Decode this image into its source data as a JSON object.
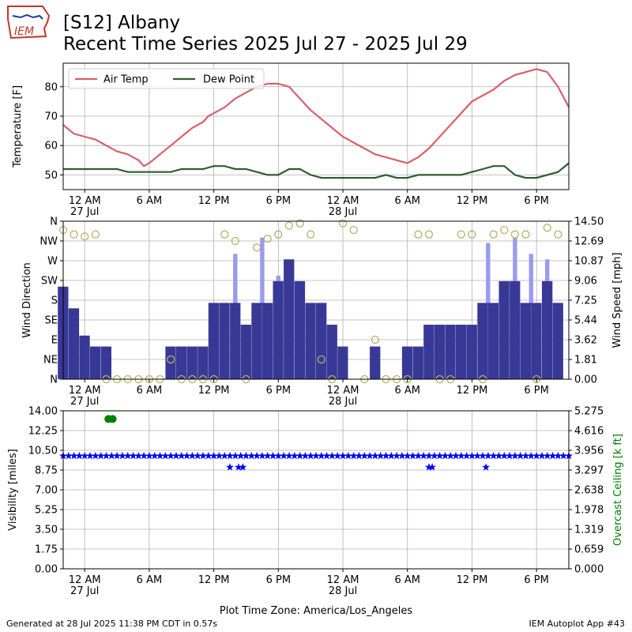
{
  "title_line1": "[S12] Albany",
  "title_line2": "Recent Time Series 2025 Jul 27 - 2025 Jul 29",
  "footer_left": "Generated at 28 Jul 2025 11:38 PM CDT in 0.57s",
  "footer_right": "IEM Autoplot App #43",
  "logo_text": "IEM",
  "x_axis_label": "Plot Time Zone: America/Los_Angeles",
  "time_ticks": [
    {
      "t": 0,
      "label": "12 AM",
      "sub": "27 Jul"
    },
    {
      "t": 6,
      "label": "6 AM",
      "sub": ""
    },
    {
      "t": 12,
      "label": "12 PM",
      "sub": ""
    },
    {
      "t": 18,
      "label": "6 PM",
      "sub": ""
    },
    {
      "t": 24,
      "label": "12 AM",
      "sub": "28 Jul"
    },
    {
      "t": 30,
      "label": "6 AM",
      "sub": ""
    },
    {
      "t": 36,
      "label": "12 PM",
      "sub": ""
    },
    {
      "t": 42,
      "label": "6 PM",
      "sub": ""
    }
  ],
  "colors": {
    "air_temp": "#d9606a",
    "dew_point": "#2e5e2e",
    "wind_speed": "#383896",
    "wind_gust": "#9a9aee",
    "wind_dir": "#b2b46a",
    "visibility": "#0000ff",
    "ceiling": "#008000"
  },
  "chart_data": [
    {
      "type": "line",
      "ylabel": "Temperature [F]",
      "xlim": [
        -2,
        45
      ],
      "ylim": [
        45,
        88
      ],
      "yticks": [
        50,
        60,
        70,
        80
      ],
      "grid": true,
      "legend_position": "top-left",
      "x_unit": "hours since 27 Jul 12 AM (America/Los_Angeles)",
      "series": [
        {
          "name": "Air Temp",
          "x": [
            -2,
            -1,
            0,
            1,
            2,
            3,
            4,
            5,
            5.5,
            6,
            7,
            8,
            9,
            10,
            11,
            11.5,
            12,
            13,
            14,
            15,
            16,
            17,
            18,
            19,
            20,
            21,
            22,
            23,
            24,
            25,
            26,
            27,
            28,
            29,
            30,
            31,
            32,
            33,
            34,
            35,
            36,
            37,
            38,
            39,
            40,
            41,
            42,
            43,
            44,
            45
          ],
          "y": [
            67,
            64,
            63,
            62,
            60,
            58,
            57,
            55,
            53,
            54,
            57,
            60,
            63,
            66,
            68,
            70,
            71,
            73,
            76,
            78,
            80,
            81,
            81,
            80,
            76,
            72,
            69,
            66,
            63,
            61,
            59,
            57,
            56,
            55,
            54,
            56,
            59,
            63,
            67,
            71,
            75,
            77,
            79,
            82,
            84,
            85,
            86,
            85,
            80,
            73
          ]
        },
        {
          "name": "Dew Point",
          "x": [
            -2,
            0,
            1,
            2,
            3,
            4,
            5,
            6,
            7,
            8,
            9,
            10,
            11,
            12,
            13,
            14,
            15,
            16,
            17,
            18,
            19,
            20,
            21,
            22,
            23,
            24,
            25,
            26,
            27,
            28,
            29,
            30,
            31,
            32,
            33,
            34,
            35,
            36,
            37,
            38,
            39,
            40,
            41,
            42,
            43,
            44,
            45
          ],
          "y": [
            52,
            52,
            52,
            52,
            52,
            51,
            51,
            51,
            51,
            51,
            52,
            52,
            52,
            53,
            53,
            52,
            52,
            51,
            50,
            50,
            52,
            52,
            50,
            49,
            49,
            49,
            49,
            49,
            49,
            50,
            49,
            49,
            50,
            50,
            50,
            50,
            50,
            51,
            52,
            53,
            53,
            50,
            49,
            49,
            50,
            51,
            54
          ]
        }
      ]
    },
    {
      "type": "bar",
      "ylabel": "Wind Direction",
      "y2label": "Wind Speed [mph]",
      "xlim": [
        -2,
        45
      ],
      "ylim_direction_deg": [
        0,
        360
      ],
      "direction_ticks": [
        "N",
        "NE",
        "E",
        "SE",
        "S",
        "SW",
        "W",
        "NW",
        "N"
      ],
      "y2lim": [
        0,
        14.5
      ],
      "y2ticks": [
        "0.00",
        "1.81",
        "3.62",
        "5.44",
        "7.25",
        "9.06",
        "10.87",
        "12.69",
        "14.50"
      ],
      "grid": true,
      "speed_x": [
        -2,
        -1,
        0,
        1,
        2,
        3,
        4,
        5,
        6,
        7,
        8,
        9,
        10,
        11,
        12,
        13,
        14,
        15,
        16,
        17,
        18,
        19,
        20,
        21,
        22,
        23,
        24,
        25,
        26,
        27,
        28,
        29,
        30,
        31,
        32,
        33,
        34,
        35,
        36,
        37,
        38,
        39,
        40,
        41,
        42,
        43,
        44
      ],
      "speed_mph": [
        8.5,
        6.5,
        4,
        3,
        3,
        0,
        0,
        0,
        0,
        0,
        3,
        3,
        3,
        3,
        7,
        7,
        7,
        5,
        7,
        7,
        9,
        11,
        9,
        7,
        7,
        5,
        3,
        0,
        0,
        3,
        0,
        0,
        3,
        3,
        5,
        5,
        5,
        5,
        5,
        7,
        7,
        9,
        9,
        7,
        7,
        9,
        7
      ],
      "gust_x": [
        14,
        16.5,
        18,
        37.5,
        40,
        41.5,
        43
      ],
      "gust_mph": [
        11.5,
        13,
        9.5,
        12.5,
        13,
        11.5,
        11
      ],
      "direction_x": [
        -2,
        -1,
        0,
        1,
        2,
        3,
        4,
        5,
        6,
        7,
        8,
        9,
        10,
        11,
        12,
        13,
        14,
        15,
        16,
        17,
        18,
        19,
        20,
        21,
        22,
        23,
        24,
        25,
        26,
        27,
        28,
        29,
        30,
        31,
        32,
        33,
        34,
        35,
        36,
        37,
        38,
        39,
        40,
        41,
        42,
        43,
        44
      ],
      "direction_deg": [
        340,
        330,
        325,
        330,
        0,
        0,
        0,
        0,
        0,
        0,
        45,
        0,
        0,
        0,
        0,
        330,
        315,
        0,
        300,
        320,
        330,
        350,
        355,
        330,
        45,
        0,
        355,
        340,
        0,
        90,
        0,
        0,
        0,
        330,
        330,
        0,
        0,
        330,
        330,
        0,
        330,
        340,
        330,
        330,
        0,
        345,
        330
      ]
    },
    {
      "type": "scatter",
      "ylabel": "Visibility [miles]",
      "y2label": "Overcast Ceiling [k ft]",
      "xlim": [
        -2,
        45
      ],
      "ylim": [
        0,
        14
      ],
      "yticks": [
        "0.00",
        "1.75",
        "3.50",
        "5.25",
        "7.00",
        "8.75",
        "10.50",
        "12.25",
        "14.00"
      ],
      "y2ticks": [
        "0.000",
        "0.659",
        "1.319",
        "1.978",
        "2.638",
        "3.297",
        "3.956",
        "4.616",
        "5.275"
      ],
      "y2lim": [
        0,
        5.275
      ],
      "grid": true,
      "visibility_x": [
        -2,
        -1.5,
        -1,
        -0.5,
        0,
        0.5,
        1,
        1.5,
        2,
        2.5,
        3,
        3.5,
        4,
        4.5,
        5,
        5.5,
        6,
        6.5,
        7,
        7.5,
        8,
        8.5,
        9,
        9.5,
        10,
        10.5,
        11,
        11.5,
        12,
        12.5,
        13,
        13.5,
        14,
        14.5,
        15,
        15.5,
        16,
        16.5,
        17,
        17.5,
        18,
        18.5,
        19,
        19.5,
        20,
        20.5,
        21,
        21.5,
        22,
        22.5,
        23,
        23.5,
        24,
        24.5,
        25,
        25.5,
        26,
        26.5,
        27,
        27.5,
        28,
        28.5,
        29,
        29.5,
        30,
        30.5,
        31,
        31.5,
        32,
        32.5,
        33,
        33.5,
        34,
        34.5,
        35,
        35.5,
        36,
        36.5,
        37,
        37.5,
        38,
        38.5,
        39,
        39.5,
        40,
        40.5,
        41,
        41.5,
        42,
        42.5,
        43,
        43.5,
        44,
        44.5,
        45,
        13.5,
        14.3,
        14.7,
        32,
        32.3,
        37.3
      ],
      "visibility_miles": [
        10,
        10,
        10,
        10,
        10,
        10,
        10,
        10,
        10,
        10,
        10,
        10,
        10,
        10,
        10,
        10,
        10,
        10,
        10,
        10,
        10,
        10,
        10,
        10,
        10,
        10,
        10,
        10,
        10,
        10,
        10,
        10,
        10,
        10,
        10,
        10,
        10,
        10,
        10,
        10,
        10,
        10,
        10,
        10,
        10,
        10,
        10,
        10,
        10,
        10,
        10,
        10,
        10,
        10,
        10,
        10,
        10,
        10,
        10,
        10,
        10,
        10,
        10,
        10,
        10,
        10,
        10,
        10,
        10,
        10,
        10,
        10,
        10,
        10,
        10,
        10,
        10,
        10,
        10,
        10,
        10,
        10,
        10,
        10,
        10,
        10,
        10,
        10,
        10,
        10,
        10,
        10,
        10,
        10,
        10,
        9,
        9,
        9,
        9,
        9,
        9
      ],
      "ceiling_x": [
        2.2,
        2.6
      ],
      "ceiling_kft": [
        5.0,
        5.0
      ]
    }
  ]
}
